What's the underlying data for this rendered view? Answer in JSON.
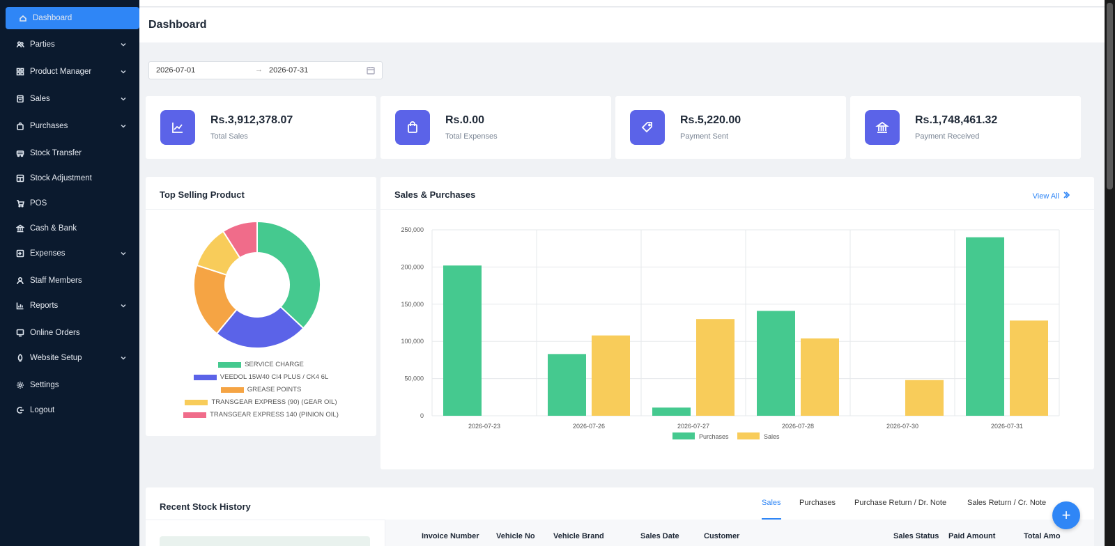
{
  "sidebar": {
    "items": [
      {
        "label": "Dashboard",
        "icon": "home-icon",
        "active": true,
        "has_children": false
      },
      {
        "label": "Parties",
        "icon": "users-icon",
        "has_children": true
      },
      {
        "label": "Product Manager",
        "icon": "grid-icon",
        "has_children": true
      },
      {
        "label": "Sales",
        "icon": "receipt-icon",
        "has_children": true
      },
      {
        "label": "Purchases",
        "icon": "bag-icon",
        "has_children": true
      },
      {
        "label": "Stock Transfer",
        "icon": "truck-icon",
        "has_children": false
      },
      {
        "label": "Stock Adjustment",
        "icon": "calculator-icon",
        "has_children": false
      },
      {
        "label": "POS",
        "icon": "cart-icon",
        "has_children": false
      },
      {
        "label": "Cash & Bank",
        "icon": "bank-icon",
        "has_children": false
      },
      {
        "label": "Expenses",
        "icon": "export-icon",
        "has_children": true
      },
      {
        "label": "Staff Members",
        "icon": "user-icon",
        "has_children": false
      },
      {
        "label": "Reports",
        "icon": "bar-chart-icon",
        "has_children": true
      },
      {
        "label": "Online Orders",
        "icon": "monitor-icon",
        "has_children": false
      },
      {
        "label": "Website Setup",
        "icon": "rocket-icon",
        "has_children": true
      },
      {
        "label": "Settings",
        "icon": "gear-icon",
        "has_children": false
      },
      {
        "label": "Logout",
        "icon": "logout-icon",
        "has_children": false
      }
    ]
  },
  "header": {
    "title": "Dashboard"
  },
  "date_range": {
    "start": "2026-07-01",
    "end": "2026-07-31",
    "separator": "→"
  },
  "stats": [
    {
      "value": "Rs.3,912,378.07",
      "label": "Total Sales",
      "icon": "line-chart-icon"
    },
    {
      "value": "Rs.0.00",
      "label": "Total Expenses",
      "icon": "shopping-bag-icon"
    },
    {
      "value": "Rs.5,220.00",
      "label": "Payment Sent",
      "icon": "tag-icon"
    },
    {
      "value": "Rs.1,748,461.32",
      "label": "Payment Received",
      "icon": "bank-icon"
    }
  ],
  "top_selling": {
    "title": "Top Selling Product"
  },
  "sales_purchases": {
    "title": "Sales & Purchases",
    "view_all": "View All"
  },
  "chart_data": [
    {
      "type": "pie",
      "title": "",
      "donut": true,
      "legend_position": "bottom",
      "series": [
        {
          "name": "SERVICE CHARGE",
          "value": 37,
          "color": "#45c98f"
        },
        {
          "name": "VEEDOL 15W40 CI4 PLUS / CK4 6L",
          "value": 24,
          "color": "#5b63e8"
        },
        {
          "name": "GREASE POINTS",
          "value": 19,
          "color": "#f5a444"
        },
        {
          "name": "TRANSGEAR EXPRESS (90) (GEAR OIL)",
          "value": 11,
          "color": "#f8cc5a"
        },
        {
          "name": "TRANSGEAR EXPRESS 140 (PINION OIL)",
          "value": 9,
          "color": "#f06c8a"
        }
      ]
    },
    {
      "type": "bar",
      "title": "",
      "categories": [
        "2026-07-23",
        "2026-07-26",
        "2026-07-27",
        "2026-07-28",
        "2026-07-30",
        "2026-07-31"
      ],
      "series": [
        {
          "name": "Purchases",
          "values": [
            202000,
            83000,
            11000,
            141000,
            0,
            240000
          ],
          "color": "#45c98f"
        },
        {
          "name": "Sales",
          "values": [
            0,
            108000,
            130000,
            104000,
            48000,
            128000
          ],
          "color": "#f8cc5a"
        }
      ],
      "ylim": [
        0,
        250000
      ],
      "yticks": [
        "250,000",
        "200,000",
        "150,000",
        "100,000",
        "50,000",
        "0"
      ],
      "ytick_values": [
        250000,
        200000,
        150000,
        100000,
        50000,
        0
      ],
      "grid": true,
      "legend_position": "bottom"
    }
  ],
  "stock_history": {
    "title": "Recent Stock History",
    "tabs": [
      {
        "label": "Sales",
        "active": true
      },
      {
        "label": "Purchases",
        "active": false
      },
      {
        "label": "Purchase Return / Dr. Note",
        "active": false
      },
      {
        "label": "Sales Return / Cr. Note",
        "active": false
      }
    ],
    "columns": [
      "Invoice Number",
      "Vehicle No",
      "Vehicle Brand",
      "Sales Date",
      "Customer",
      "Sales Status",
      "Paid Amount",
      "Total Amo"
    ]
  },
  "fab": {
    "label": "+"
  }
}
